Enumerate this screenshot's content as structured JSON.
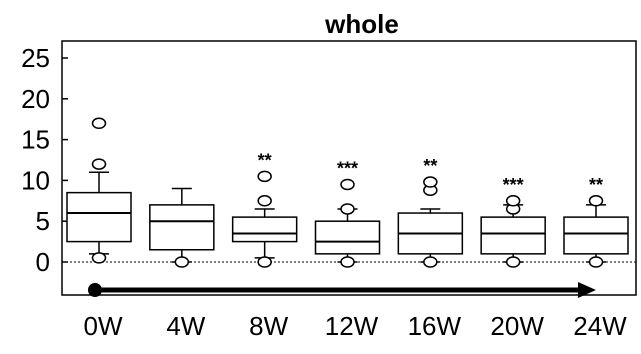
{
  "chart_data": {
    "type": "box",
    "title": "whole",
    "xlabel": "",
    "ylabel": "",
    "ylim": [
      -3,
      26
    ],
    "yticks": [
      0,
      5,
      10,
      15,
      20,
      25
    ],
    "ytick_labels": [
      "0",
      "5",
      "10",
      "15",
      "20",
      "25"
    ],
    "categories": [
      "0W",
      "4W",
      "8W",
      "12W",
      "16W",
      "20W",
      "24W"
    ],
    "boxes": [
      {
        "whisker_low": 1.0,
        "q1": 2.5,
        "median": 6.0,
        "q3": 8.5,
        "whisker_high": 11.0,
        "outliers": [
          0.5,
          12.0,
          17.0
        ],
        "significance": ""
      },
      {
        "whisker_low": 0.0,
        "q1": 1.5,
        "median": 5.0,
        "q3": 7.0,
        "whisker_high": 9.0,
        "outliers": 0.0,
        "significance": ""
      },
      {
        "whisker_low": 0.5,
        "q1": 2.5,
        "median": 3.5,
        "q3": 5.5,
        "whisker_high": 6.5,
        "outliers": [
          0.0,
          7.5,
          10.5
        ],
        "significance": "**"
      },
      {
        "whisker_low": 0.0,
        "q1": 1.0,
        "median": 2.5,
        "q3": 5.0,
        "whisker_high": 6.5,
        "outliers": [
          0.0,
          6.5,
          9.5
        ],
        "significance": "***"
      },
      {
        "whisker_low": 0.0,
        "q1": 1.0,
        "median": 3.5,
        "q3": 6.0,
        "whisker_high": 6.5,
        "outliers": [
          0.0,
          8.8,
          9.8
        ],
        "significance": "**"
      },
      {
        "whisker_low": 0.0,
        "q1": 1.0,
        "median": 3.5,
        "q3": 5.5,
        "whisker_high": 7.0,
        "outliers": [
          0.0,
          6.5,
          7.5
        ],
        "significance": "***"
      },
      {
        "whisker_low": 0.0,
        "q1": 1.0,
        "median": 3.5,
        "q3": 5.5,
        "whisker_high": 7.0,
        "outliers": [
          0.0,
          7.5
        ],
        "significance": "**"
      }
    ],
    "reference_line": {
      "y": 0,
      "style": "dotted"
    },
    "arrow": {
      "from_category": "0W",
      "to_category": "24W",
      "y": -3
    }
  }
}
